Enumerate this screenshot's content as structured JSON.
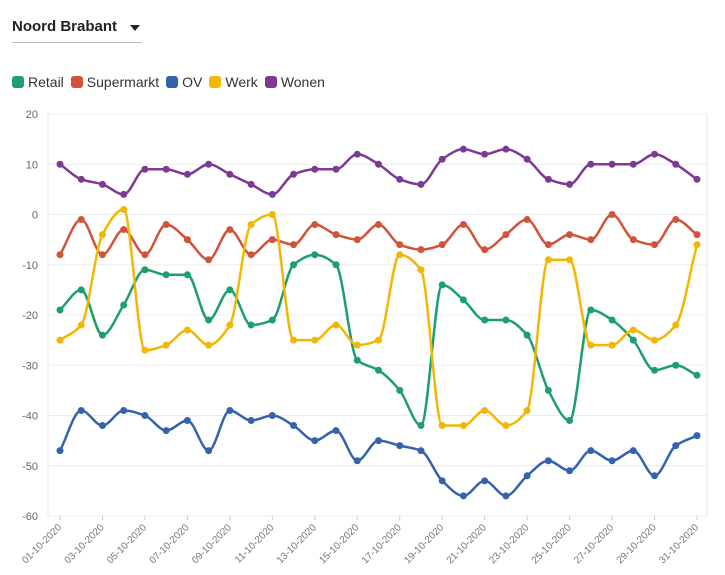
{
  "filter": {
    "region": "Noord Brabant"
  },
  "chart_data": {
    "type": "line",
    "title": "",
    "xlabel": "",
    "ylabel": "",
    "ylim": [
      -60,
      20
    ],
    "yticks": [
      20,
      10,
      0,
      -10,
      -20,
      -30,
      -40,
      -50,
      -60
    ],
    "grid": true,
    "legend_position": "top-left",
    "x": [
      "01-10-2020",
      "02-10-2020",
      "03-10-2020",
      "04-10-2020",
      "05-10-2020",
      "06-10-2020",
      "07-10-2020",
      "08-10-2020",
      "09-10-2020",
      "10-10-2020",
      "11-10-2020",
      "12-10-2020",
      "13-10-2020",
      "14-10-2020",
      "15-10-2020",
      "16-10-2020",
      "17-10-2020",
      "18-10-2020",
      "19-10-2020",
      "20-10-2020",
      "21-10-2020",
      "22-10-2020",
      "23-10-2020",
      "24-10-2020",
      "25-10-2020",
      "26-10-2020",
      "27-10-2020",
      "28-10-2020",
      "29-10-2020",
      "30-10-2020",
      "31-10-2020"
    ],
    "xtick_labels": [
      "01-10-2020",
      "03-10-2020",
      "05-10-2020",
      "07-10-2020",
      "09-10-2020",
      "11-10-2020",
      "13-10-2020",
      "15-10-2020",
      "17-10-2020",
      "19-10-2020",
      "21-10-2020",
      "23-10-2020",
      "25-10-2020",
      "27-10-2020",
      "29-10-2020",
      "31-10-2020"
    ],
    "series": [
      {
        "name": "Retail",
        "color": "#1e9e6e",
        "values": [
          -19,
          -15,
          -24,
          -18,
          -11,
          -12,
          -12,
          -21,
          -15,
          -22,
          -21,
          -10,
          -8,
          -10,
          -29,
          -31,
          -35,
          -42,
          -14,
          -17,
          -21,
          -21,
          -24,
          -35,
          -41,
          -19,
          -21,
          -25,
          -31,
          -30,
          -32
        ]
      },
      {
        "name": "Supermarkt",
        "color": "#d0533a",
        "values": [
          -8,
          -1,
          -8,
          -3,
          -8,
          -2,
          -5,
          -9,
          -3,
          -8,
          -5,
          -6,
          -2,
          -4,
          -5,
          -2,
          -6,
          -7,
          -6,
          -2,
          -7,
          -4,
          -1,
          -6,
          -4,
          -5,
          0,
          -5,
          -6,
          -1,
          -4
        ]
      },
      {
        "name": "OV",
        "color": "#3463ac",
        "values": [
          -47,
          -39,
          -42,
          -39,
          -40,
          -43,
          -41,
          -47,
          -39,
          -41,
          -40,
          -42,
          -45,
          -43,
          -49,
          -45,
          -46,
          -47,
          -53,
          -56,
          -53,
          -56,
          -52,
          -49,
          -51,
          -47,
          -49,
          -47,
          -52,
          -46,
          -44
        ]
      },
      {
        "name": "Werk",
        "color": "#f2b705",
        "values": [
          -25,
          -22,
          -4,
          1,
          -27,
          -26,
          -23,
          -26,
          -22,
          -2,
          0,
          -25,
          -25,
          -22,
          -26,
          -25,
          -8,
          -11,
          -42,
          -42,
          -39,
          -42,
          -39,
          -9,
          -9,
          -26,
          -26,
          -23,
          -25,
          -22,
          -6
        ]
      },
      {
        "name": "Wonen",
        "color": "#7c3a92",
        "values": [
          10,
          7,
          6,
          4,
          9,
          9,
          8,
          10,
          8,
          6,
          4,
          8,
          9,
          9,
          12,
          10,
          7,
          6,
          11,
          13,
          12,
          13,
          11,
          7,
          6,
          10,
          10,
          10,
          12,
          10,
          7
        ]
      }
    ]
  }
}
